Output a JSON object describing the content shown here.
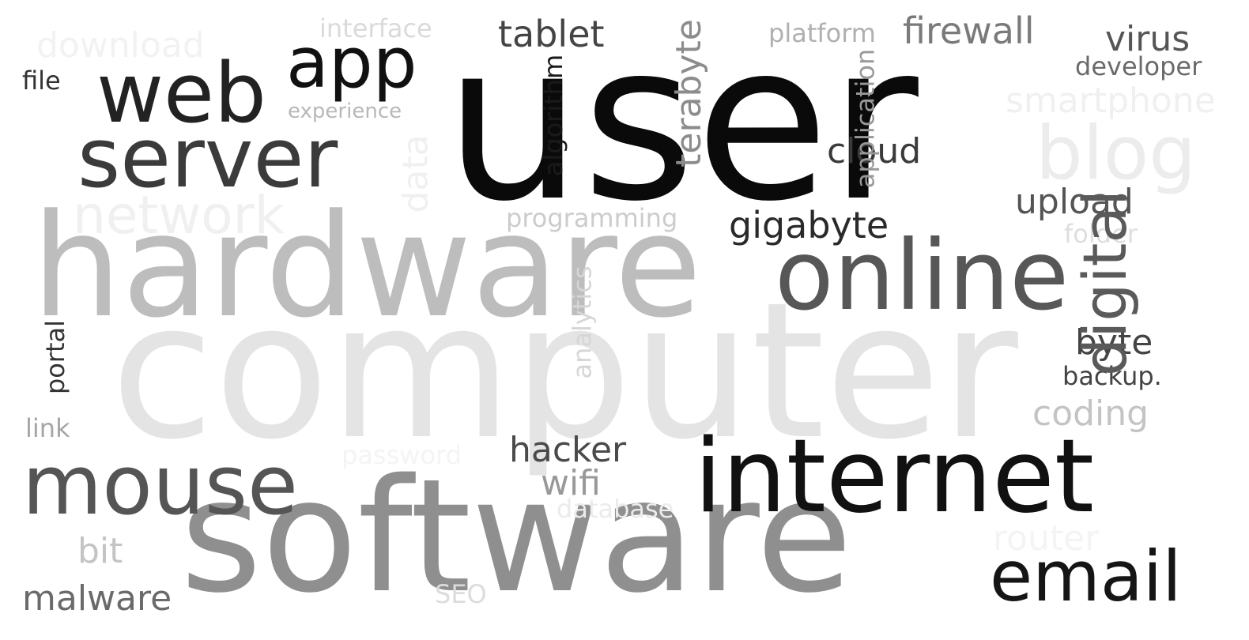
{
  "words": {
    "user": {
      "text": "user",
      "color": "#0a0a0a"
    },
    "computer": {
      "text": "computer",
      "color": "#e4e4e4"
    },
    "hardware": {
      "text": "hardware",
      "color": "#bdbdbd"
    },
    "software": {
      "text": "software",
      "color": "#8f8f8f"
    },
    "internet": {
      "text": "internet",
      "color": "#111111"
    },
    "online": {
      "text": "online",
      "color": "#575757"
    },
    "server": {
      "text": "server",
      "color": "#3b3b3b"
    },
    "mouse": {
      "text": "mouse",
      "color": "#555555"
    },
    "web": {
      "text": "web",
      "color": "#222222"
    },
    "app": {
      "text": "app",
      "color": "#111111"
    },
    "email": {
      "text": "email",
      "color": "#151515"
    },
    "blog": {
      "text": "blog",
      "color": "#ececec"
    },
    "network": {
      "text": "network",
      "color": "#f0f0f0"
    },
    "digital": {
      "text": "digital",
      "color": "#5a5a5a"
    },
    "tablet": {
      "text": "tablet",
      "color": "#444444"
    },
    "firewall": {
      "text": "firewall",
      "color": "#7a7a7a"
    },
    "virus": {
      "text": "virus",
      "color": "#555555"
    },
    "download": {
      "text": "download",
      "color": "#f2f2f2"
    },
    "interface": {
      "text": "interface",
      "color": "#dadada"
    },
    "platform": {
      "text": "platform",
      "color": "#b0b0b0"
    },
    "developer": {
      "text": "developer",
      "color": "#6a6a6a"
    },
    "smartphone": {
      "text": "smartphone",
      "color": "#f0f0f0"
    },
    "file": {
      "text": "file",
      "color": "#333333"
    },
    "experience": {
      "text": "experience",
      "color": "#b8b8b8"
    },
    "terabyte": {
      "text": "terabyte",
      "color": "#8c8c8c"
    },
    "algorithm": {
      "text": "algorithm",
      "color": "#1a1a1a"
    },
    "application": {
      "text": "application",
      "color": "#999999"
    },
    "cloud": {
      "text": "cloud",
      "color": "#3a3a3a"
    },
    "upload": {
      "text": "upload",
      "color": "#555555"
    },
    "gigabyte": {
      "text": "gigabyte",
      "color": "#2a2a2a"
    },
    "folder": {
      "text": "folder",
      "color": "#dedede"
    },
    "programming": {
      "text": "programming",
      "color": "#cccccc"
    },
    "data": {
      "text": "data",
      "color": "#f0f0f0"
    },
    "analytics": {
      "text": "analytics",
      "color": "#d6d6d6"
    },
    "byte": {
      "text": "byte",
      "color": "#444444"
    },
    "backup": {
      "text": "backup.",
      "color": "#444444"
    },
    "coding": {
      "text": "coding",
      "color": "#c4c4c4"
    },
    "portal": {
      "text": "portal",
      "color": "#333333"
    },
    "link": {
      "text": "link",
      "color": "#a6a6a6"
    },
    "hacker": {
      "text": "hacker",
      "color": "#4a4a4a"
    },
    "wifi": {
      "text": "wifi",
      "color": "#999999"
    },
    "password": {
      "text": "password",
      "color": "#f4f4f4"
    },
    "database": {
      "text": "database",
      "color": "#ebebeb"
    },
    "bit": {
      "text": "bit",
      "color": "#c4c4c4"
    },
    "malware": {
      "text": "malware",
      "color": "#6a6a6a"
    },
    "seo": {
      "text": "SEO",
      "color": "#dcdcdc"
    },
    "router": {
      "text": "router",
      "color": "#f4f4f4"
    }
  }
}
